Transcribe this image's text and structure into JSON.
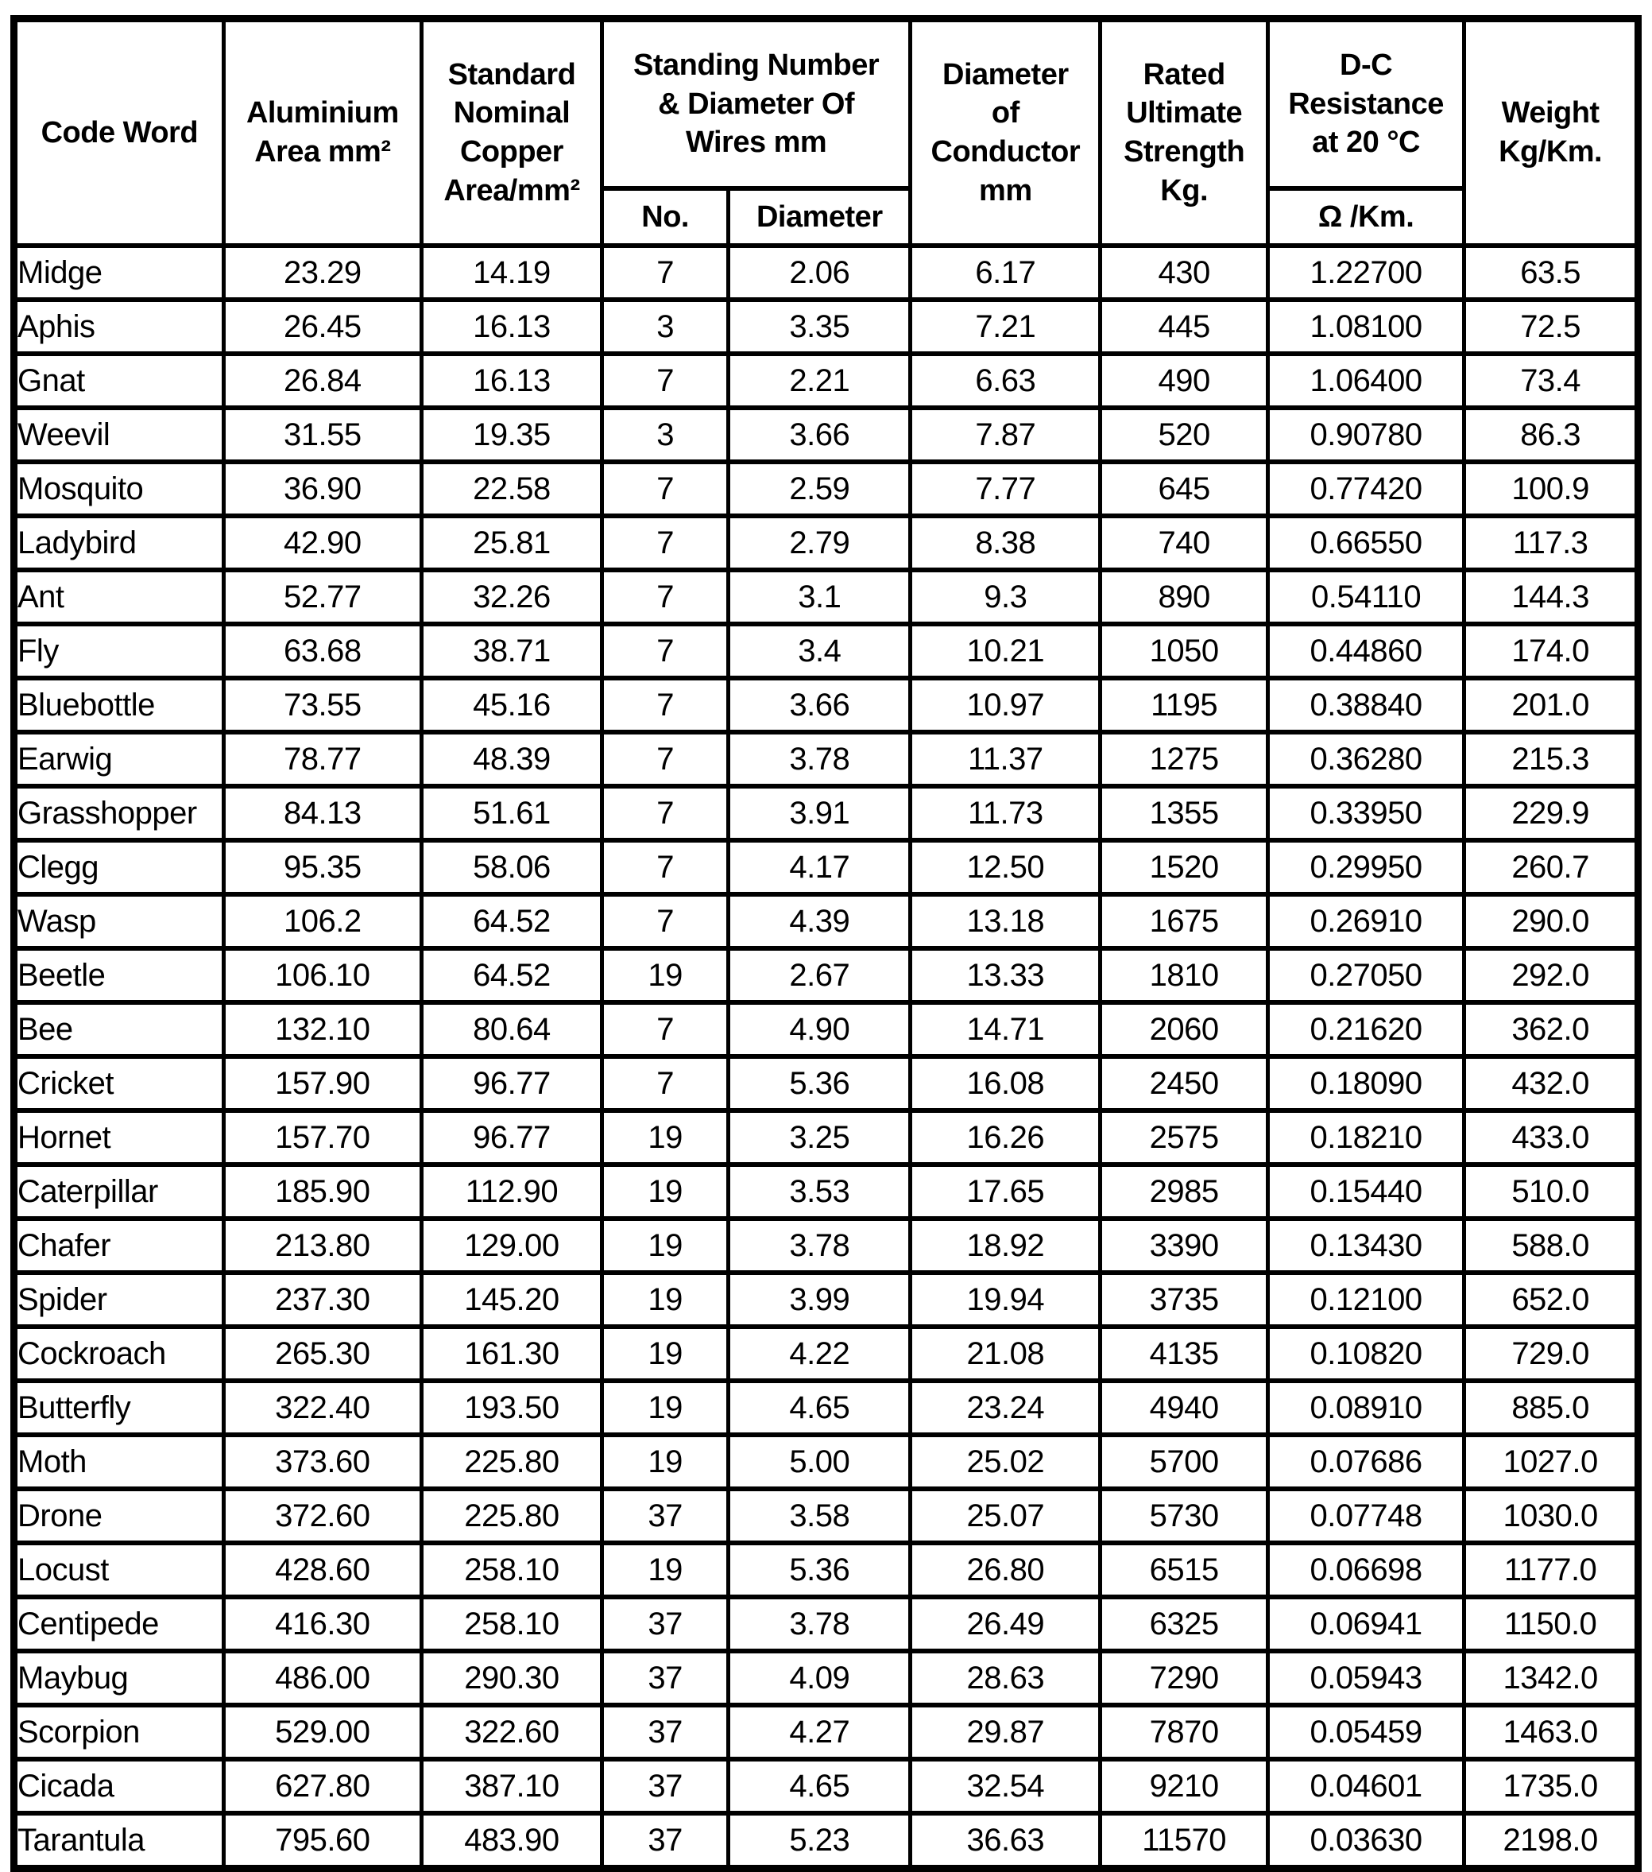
{
  "colors": {
    "background": "#ffffff",
    "border": "#000000",
    "text": "#000000"
  },
  "table": {
    "header": {
      "code_word": "Code Word",
      "aluminium_area": "Aluminium\nArea mm²",
      "copper_area": "Standard\nNominal\nCopper\nArea/mm²",
      "standing_group": "Standing Number\n& Diameter Of\nWires mm",
      "standing_no": "No.",
      "standing_diameter": "Diameter",
      "conductor_diameter": "Diameter\nof\nConductor\nmm",
      "rated_strength": "Rated\nUltimate\nStrength\nKg.",
      "dc_resistance": "D-C\nResistance\nat 20 °C",
      "dc_resistance_unit": "Ω /Km.",
      "weight": "Weight\nKg/Km."
    },
    "rows": [
      [
        "Midge",
        "23.29",
        "14.19",
        "7",
        "2.06",
        "6.17",
        "430",
        "1.22700",
        "63.5"
      ],
      [
        "Aphis",
        "26.45",
        "16.13",
        "3",
        "3.35",
        "7.21",
        "445",
        "1.08100",
        "72.5"
      ],
      [
        "Gnat",
        "26.84",
        "16.13",
        "7",
        "2.21",
        "6.63",
        "490",
        "1.06400",
        "73.4"
      ],
      [
        "Weevil",
        "31.55",
        "19.35",
        "3",
        "3.66",
        "7.87",
        "520",
        "0.90780",
        "86.3"
      ],
      [
        "Mosquito",
        "36.90",
        "22.58",
        "7",
        "2.59",
        "7.77",
        "645",
        "0.77420",
        "100.9"
      ],
      [
        "Ladybird",
        "42.90",
        "25.81",
        "7",
        "2.79",
        "8.38",
        "740",
        "0.66550",
        "117.3"
      ],
      [
        "Ant",
        "52.77",
        "32.26",
        "7",
        "3.1",
        "9.3",
        "890",
        "0.54110",
        "144.3"
      ],
      [
        "Fly",
        "63.68",
        "38.71",
        "7",
        "3.4",
        "10.21",
        "1050",
        "0.44860",
        "174.0"
      ],
      [
        "Bluebottle",
        "73.55",
        "45.16",
        "7",
        "3.66",
        "10.97",
        "1195",
        "0.38840",
        "201.0"
      ],
      [
        "Earwig",
        "78.77",
        "48.39",
        "7",
        "3.78",
        "11.37",
        "1275",
        "0.36280",
        "215.3"
      ],
      [
        "Grasshopper",
        "84.13",
        "51.61",
        "7",
        "3.91",
        "11.73",
        "1355",
        "0.33950",
        "229.9"
      ],
      [
        "Clegg",
        "95.35",
        "58.06",
        "7",
        "4.17",
        "12.50",
        "1520",
        "0.29950",
        "260.7"
      ],
      [
        "Wasp",
        "106.2",
        "64.52",
        "7",
        "4.39",
        "13.18",
        "1675",
        "0.26910",
        "290.0"
      ],
      [
        "Beetle",
        "106.10",
        "64.52",
        "19",
        "2.67",
        "13.33",
        "1810",
        "0.27050",
        "292.0"
      ],
      [
        "Bee",
        "132.10",
        "80.64",
        "7",
        "4.90",
        "14.71",
        "2060",
        "0.21620",
        "362.0"
      ],
      [
        "Cricket",
        "157.90",
        "96.77",
        "7",
        "5.36",
        "16.08",
        "2450",
        "0.18090",
        "432.0"
      ],
      [
        "Hornet",
        "157.70",
        "96.77",
        "19",
        "3.25",
        "16.26",
        "2575",
        "0.18210",
        "433.0"
      ],
      [
        "Caterpillar",
        "185.90",
        "112.90",
        "19",
        "3.53",
        "17.65",
        "2985",
        "0.15440",
        "510.0"
      ],
      [
        "Chafer",
        "213.80",
        "129.00",
        "19",
        "3.78",
        "18.92",
        "3390",
        "0.13430",
        "588.0"
      ],
      [
        "Spider",
        "237.30",
        "145.20",
        "19",
        "3.99",
        "19.94",
        "3735",
        "0.12100",
        "652.0"
      ],
      [
        "Cockroach",
        "265.30",
        "161.30",
        "19",
        "4.22",
        "21.08",
        "4135",
        "0.10820",
        "729.0"
      ],
      [
        "Butterfly",
        "322.40",
        "193.50",
        "19",
        "4.65",
        "23.24",
        "4940",
        "0.08910",
        "885.0"
      ],
      [
        "Moth",
        "373.60",
        "225.80",
        "19",
        "5.00",
        "25.02",
        "5700",
        "0.07686",
        "1027.0"
      ],
      [
        "Drone",
        "372.60",
        "225.80",
        "37",
        "3.58",
        "25.07",
        "5730",
        "0.07748",
        "1030.0"
      ],
      [
        "Locust",
        "428.60",
        "258.10",
        "19",
        "5.36",
        "26.80",
        "6515",
        "0.06698",
        "1177.0"
      ],
      [
        "Centipede",
        "416.30",
        "258.10",
        "37",
        "3.78",
        "26.49",
        "6325",
        "0.06941",
        "1150.0"
      ],
      [
        "Maybug",
        "486.00",
        "290.30",
        "37",
        "4.09",
        "28.63",
        "7290",
        "0.05943",
        "1342.0"
      ],
      [
        "Scorpion",
        "529.00",
        "322.60",
        "37",
        "4.27",
        "29.87",
        "7870",
        "0.05459",
        "1463.0"
      ],
      [
        "Cicada",
        "627.80",
        "387.10",
        "37",
        "4.65",
        "32.54",
        "9210",
        "0.04601",
        "1735.0"
      ],
      [
        "Tarantula",
        "795.60",
        "483.90",
        "37",
        "5.23",
        "36.63",
        "11570",
        "0.03630",
        "2198.0"
      ]
    ]
  }
}
